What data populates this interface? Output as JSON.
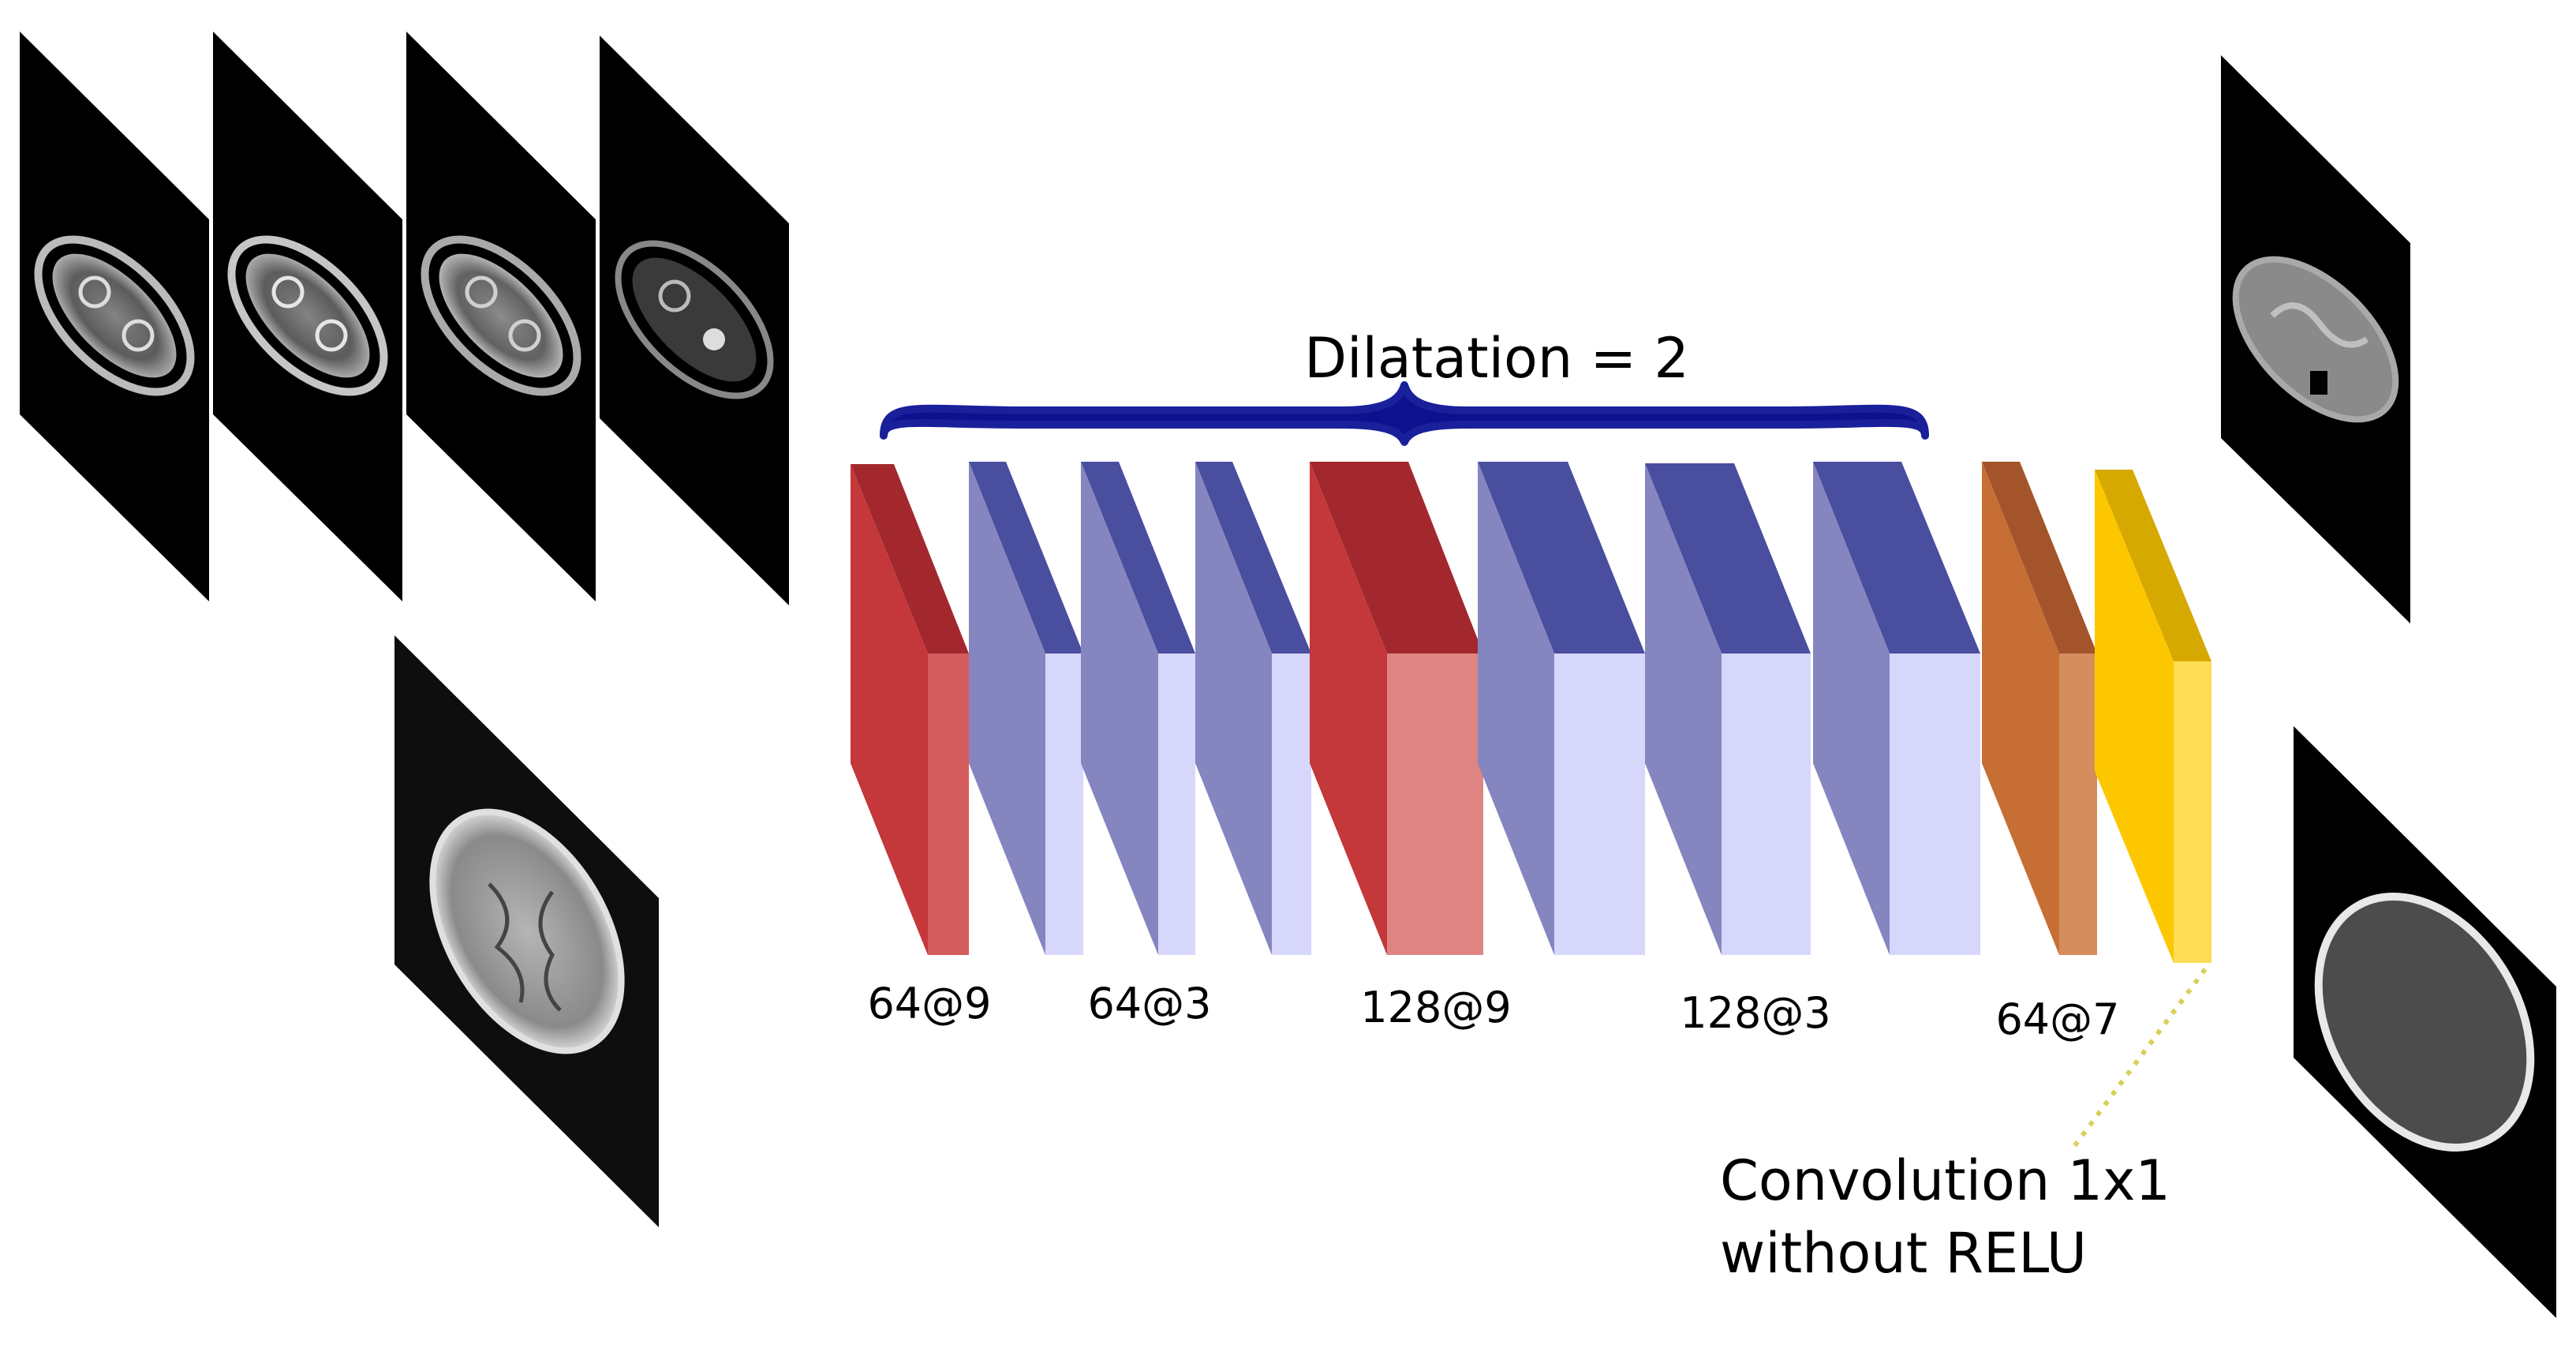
{
  "annotation": {
    "dilatation": "Dilatation = 2",
    "conv_note_line1": "Convolution 1x1",
    "conv_note_line2": "without RELU"
  },
  "layer_labels": [
    "64@9",
    "64@3",
    "128@9",
    "128@3",
    "64@7"
  ],
  "colors": {
    "red_front": "#c4373a",
    "red_top": "#a2282d",
    "red_side": "#d55c5c",
    "red_side_light": "#de8584",
    "blue_front": "#8586bf",
    "blue_top": "#4a4e9f",
    "blue_side": "#d6d7fb",
    "orange_front": "#c76e35",
    "orange_top": "#a3542a",
    "orange_side": "#d58d5d",
    "yellow_front": "#fdc700",
    "yellow_top": "#d6a900",
    "yellow_side": "#ffdd55",
    "brace": "#1a1f9a",
    "dotted_line": "#d8d05a"
  },
  "icons": {
    "input_slices": "mri-slice-icon",
    "output_slices": "ct-slice-icon"
  }
}
